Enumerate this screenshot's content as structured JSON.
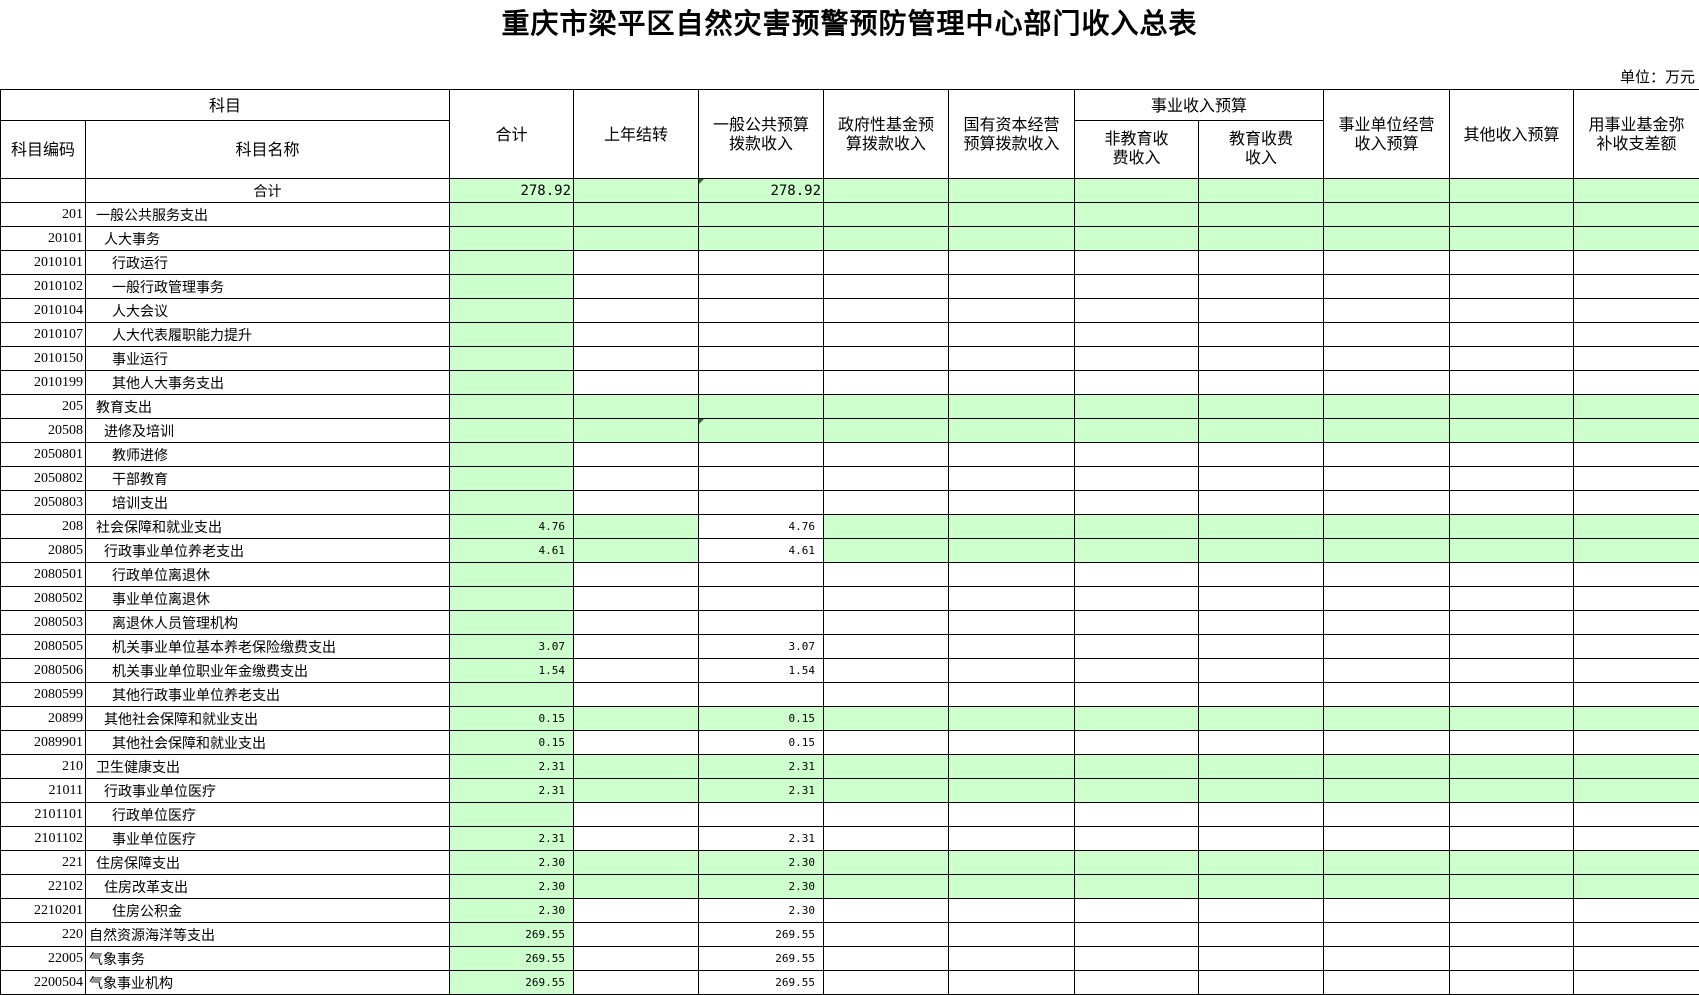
{
  "title": "重庆市梁平区自然灾害预警预防管理中心部门收入总表",
  "unit": "单位：万元",
  "colors": {
    "highlight": "#ccffcc",
    "border": "#000000"
  },
  "headers": {
    "subject": "科目",
    "code": "科目编码",
    "name": "科目名称",
    "total": "合计",
    "carryover": "上年结转",
    "general": "一般公共预算拨款收入",
    "gov_fund": "政府性基金预算拨款收入",
    "state_capital": "国有资本经营预算拨款收入",
    "business_group": "事业收入预算",
    "non_edu": "非教育收费收入",
    "edu": "教育收费收入",
    "operating": "事业单位经营收入预算",
    "other": "其他收入预算",
    "fund_offset": "用事业基金弥补收支差额"
  },
  "rows": [
    {
      "code": "",
      "name": "合计",
      "level": 0,
      "total": "278.92",
      "general": "278.92",
      "category": true,
      "general_white": false,
      "is_total": true
    },
    {
      "code": "201",
      "name": "一般公共服务支出",
      "level": 1,
      "total": "",
      "general": "",
      "category": true
    },
    {
      "code": "20101",
      "name": "人大事务",
      "level": 2,
      "total": "",
      "general": "",
      "category": true
    },
    {
      "code": "2010101",
      "name": "行政运行",
      "level": 3,
      "total": "",
      "general": "",
      "category": false
    },
    {
      "code": "2010102",
      "name": "一般行政管理事务",
      "level": 3,
      "total": "",
      "general": "",
      "category": false
    },
    {
      "code": "2010104",
      "name": "人大会议",
      "level": 3,
      "total": "",
      "general": "",
      "category": false
    },
    {
      "code": "2010107",
      "name": "人大代表履职能力提升",
      "level": 3,
      "total": "",
      "general": "",
      "category": false
    },
    {
      "code": "2010150",
      "name": "事业运行",
      "level": 3,
      "total": "",
      "general": "",
      "category": false
    },
    {
      "code": "2010199",
      "name": "其他人大事务支出",
      "level": 3,
      "total": "",
      "general": "",
      "category": false
    },
    {
      "code": "205",
      "name": "教育支出",
      "level": 1,
      "total": "",
      "general": "",
      "category": true
    },
    {
      "code": "20508",
      "name": "进修及培训",
      "level": 2,
      "total": "",
      "general": "",
      "category": true
    },
    {
      "code": "2050801",
      "name": "教师进修",
      "level": 3,
      "total": "",
      "general": "",
      "category": false
    },
    {
      "code": "2050802",
      "name": "干部教育",
      "level": 3,
      "total": "",
      "general": "",
      "category": false
    },
    {
      "code": "2050803",
      "name": "培训支出",
      "level": 3,
      "total": "",
      "general": "",
      "category": false
    },
    {
      "code": "208",
      "name": "社会保障和就业支出",
      "level": 1,
      "total": "4.76",
      "general": "4.76",
      "category": true,
      "general_white": true
    },
    {
      "code": "20805",
      "name": "行政事业单位养老支出",
      "level": 2,
      "total": "4.61",
      "general": "4.61",
      "category": true,
      "general_white": true
    },
    {
      "code": "2080501",
      "name": "行政单位离退休",
      "level": 3,
      "total": "",
      "general": "",
      "category": false
    },
    {
      "code": "2080502",
      "name": "事业单位离退休",
      "level": 3,
      "total": "",
      "general": "",
      "category": false
    },
    {
      "code": "2080503",
      "name": "离退休人员管理机构",
      "level": 3,
      "total": "",
      "general": "",
      "category": false
    },
    {
      "code": "2080505",
      "name": "机关事业单位基本养老保险缴费支出",
      "level": 3,
      "total": "3.07",
      "general": "3.07",
      "category": false
    },
    {
      "code": "2080506",
      "name": "机关事业单位职业年金缴费支出",
      "level": 3,
      "total": "1.54",
      "general": "1.54",
      "category": false
    },
    {
      "code": "2080599",
      "name": "其他行政事业单位养老支出",
      "level": 3,
      "total": "",
      "general": "",
      "category": false
    },
    {
      "code": "20899",
      "name": "其他社会保障和就业支出",
      "level": 2,
      "total": "0.15",
      "general": "0.15",
      "category": true
    },
    {
      "code": "2089901",
      "name": "其他社会保障和就业支出",
      "level": 3,
      "total": "0.15",
      "general": "0.15",
      "category": false
    },
    {
      "code": "210",
      "name": "卫生健康支出",
      "level": 1,
      "total": "2.31",
      "general": "2.31",
      "category": true
    },
    {
      "code": "21011",
      "name": "行政事业单位医疗",
      "level": 2,
      "total": "2.31",
      "general": "2.31",
      "category": true
    },
    {
      "code": "2101101",
      "name": "行政单位医疗",
      "level": 3,
      "total": "",
      "general": "",
      "category": false
    },
    {
      "code": "2101102",
      "name": "事业单位医疗",
      "level": 3,
      "total": "2.31",
      "general": "2.31",
      "category": false
    },
    {
      "code": "221",
      "name": "住房保障支出",
      "level": 1,
      "total": "2.30",
      "general": "2.30",
      "category": true
    },
    {
      "code": "22102",
      "name": "住房改革支出",
      "level": 2,
      "total": "2.30",
      "general": "2.30",
      "category": true
    },
    {
      "code": "2210201",
      "name": "住房公积金",
      "level": 3,
      "total": "2.30",
      "general": "2.30",
      "category": false
    },
    {
      "code": "220",
      "name": "自然资源海洋等支出",
      "level": 0,
      "total": "269.55",
      "general": "269.55",
      "category": false
    },
    {
      "code": "22005",
      "name": "气象事务",
      "level": 0,
      "total": "269.55",
      "general": "269.55",
      "category": false
    },
    {
      "code": "2200504",
      "name": "气象事业机构",
      "level": 0,
      "total": "269.55",
      "general": "269.55",
      "category": false
    }
  ]
}
